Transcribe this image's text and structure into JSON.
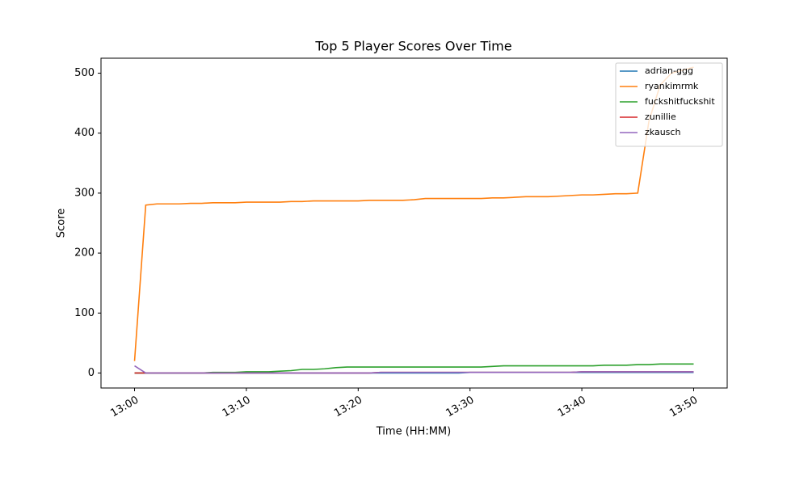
{
  "chart_data": {
    "type": "line",
    "title": "Top 5 Player Scores Over Time",
    "xlabel": "Time (HH:MM)",
    "ylabel": "Score",
    "x": [
      "13:00",
      "13:01",
      "13:02",
      "13:03",
      "13:04",
      "13:05",
      "13:06",
      "13:07",
      "13:08",
      "13:09",
      "13:10",
      "13:11",
      "13:12",
      "13:13",
      "13:14",
      "13:15",
      "13:16",
      "13:17",
      "13:18",
      "13:19",
      "13:20",
      "13:21",
      "13:22",
      "13:23",
      "13:24",
      "13:25",
      "13:26",
      "13:27",
      "13:28",
      "13:29",
      "13:30",
      "13:31",
      "13:32",
      "13:33",
      "13:34",
      "13:35",
      "13:36",
      "13:37",
      "13:38",
      "13:39",
      "13:40",
      "13:41",
      "13:42",
      "13:43",
      "13:44",
      "13:45",
      "13:46",
      "13:47",
      "13:48",
      "13:49",
      "13:50"
    ],
    "series": [
      {
        "name": "adrian-ggg",
        "color": "#1f77b4",
        "values": [
          0,
          0,
          0,
          0,
          0,
          0,
          0,
          0,
          0,
          0,
          0,
          0,
          0,
          0,
          0,
          0,
          0,
          0,
          0,
          0,
          0,
          0,
          0,
          0,
          0,
          0,
          0,
          0,
          0,
          0,
          1,
          1,
          1,
          1,
          1,
          1,
          1,
          1,
          1,
          1,
          1,
          1,
          1,
          1,
          1,
          1,
          1,
          1,
          1,
          1,
          1
        ]
      },
      {
        "name": "ryankimrmk",
        "color": "#ff7f0e",
        "values": [
          20,
          280,
          282,
          282,
          282,
          283,
          283,
          284,
          284,
          284,
          285,
          285,
          285,
          285,
          286,
          286,
          287,
          287,
          287,
          287,
          287,
          288,
          288,
          288,
          288,
          289,
          291,
          291,
          291,
          291,
          291,
          291,
          292,
          292,
          293,
          294,
          294,
          294,
          295,
          296,
          297,
          297,
          298,
          299,
          299,
          300,
          420,
          480,
          500,
          505,
          510
        ]
      },
      {
        "name": "fuckshitfuckshit",
        "color": "#2ca02c",
        "values": [
          0,
          0,
          0,
          0,
          0,
          0,
          0,
          1,
          1,
          1,
          2,
          2,
          2,
          3,
          4,
          6,
          6,
          7,
          9,
          10,
          10,
          10,
          10,
          10,
          10,
          10,
          10,
          10,
          10,
          10,
          10,
          10,
          11,
          12,
          12,
          12,
          12,
          12,
          12,
          12,
          12,
          12,
          13,
          13,
          13,
          14,
          14,
          15,
          15,
          15,
          15
        ]
      },
      {
        "name": "zunillie",
        "color": "#d62728",
        "values": [
          0,
          0,
          0,
          0,
          0,
          0,
          0,
          0,
          0,
          0,
          0,
          0,
          0,
          0,
          0,
          0,
          0,
          0,
          0,
          0,
          0,
          0,
          1,
          1,
          1,
          1,
          1,
          1,
          1,
          1,
          1,
          1,
          1,
          1,
          1,
          1,
          1,
          1,
          1,
          1,
          2,
          2,
          2,
          2,
          2,
          2,
          2,
          2,
          2,
          2,
          2
        ]
      },
      {
        "name": "zkausch",
        "color": "#9467bd",
        "values": [
          12,
          0,
          0,
          0,
          0,
          0,
          0,
          0,
          0,
          0,
          0,
          0,
          0,
          0,
          0,
          0,
          0,
          0,
          0,
          0,
          0,
          0,
          1,
          1,
          1,
          1,
          1,
          1,
          1,
          1,
          1,
          1,
          1,
          1,
          1,
          1,
          1,
          1,
          1,
          1,
          2,
          2,
          2,
          2,
          2,
          2,
          2,
          2,
          2,
          2,
          2
        ]
      }
    ],
    "xlim": [
      "12:57",
      "13:53"
    ],
    "xticks": [
      "13:00",
      "13:10",
      "13:20",
      "13:30",
      "13:40",
      "13:50"
    ],
    "ylim": [
      -25,
      525
    ],
    "yticks": [
      0,
      100,
      200,
      300,
      400,
      500
    ],
    "grid": false,
    "legend": "upper right"
  }
}
